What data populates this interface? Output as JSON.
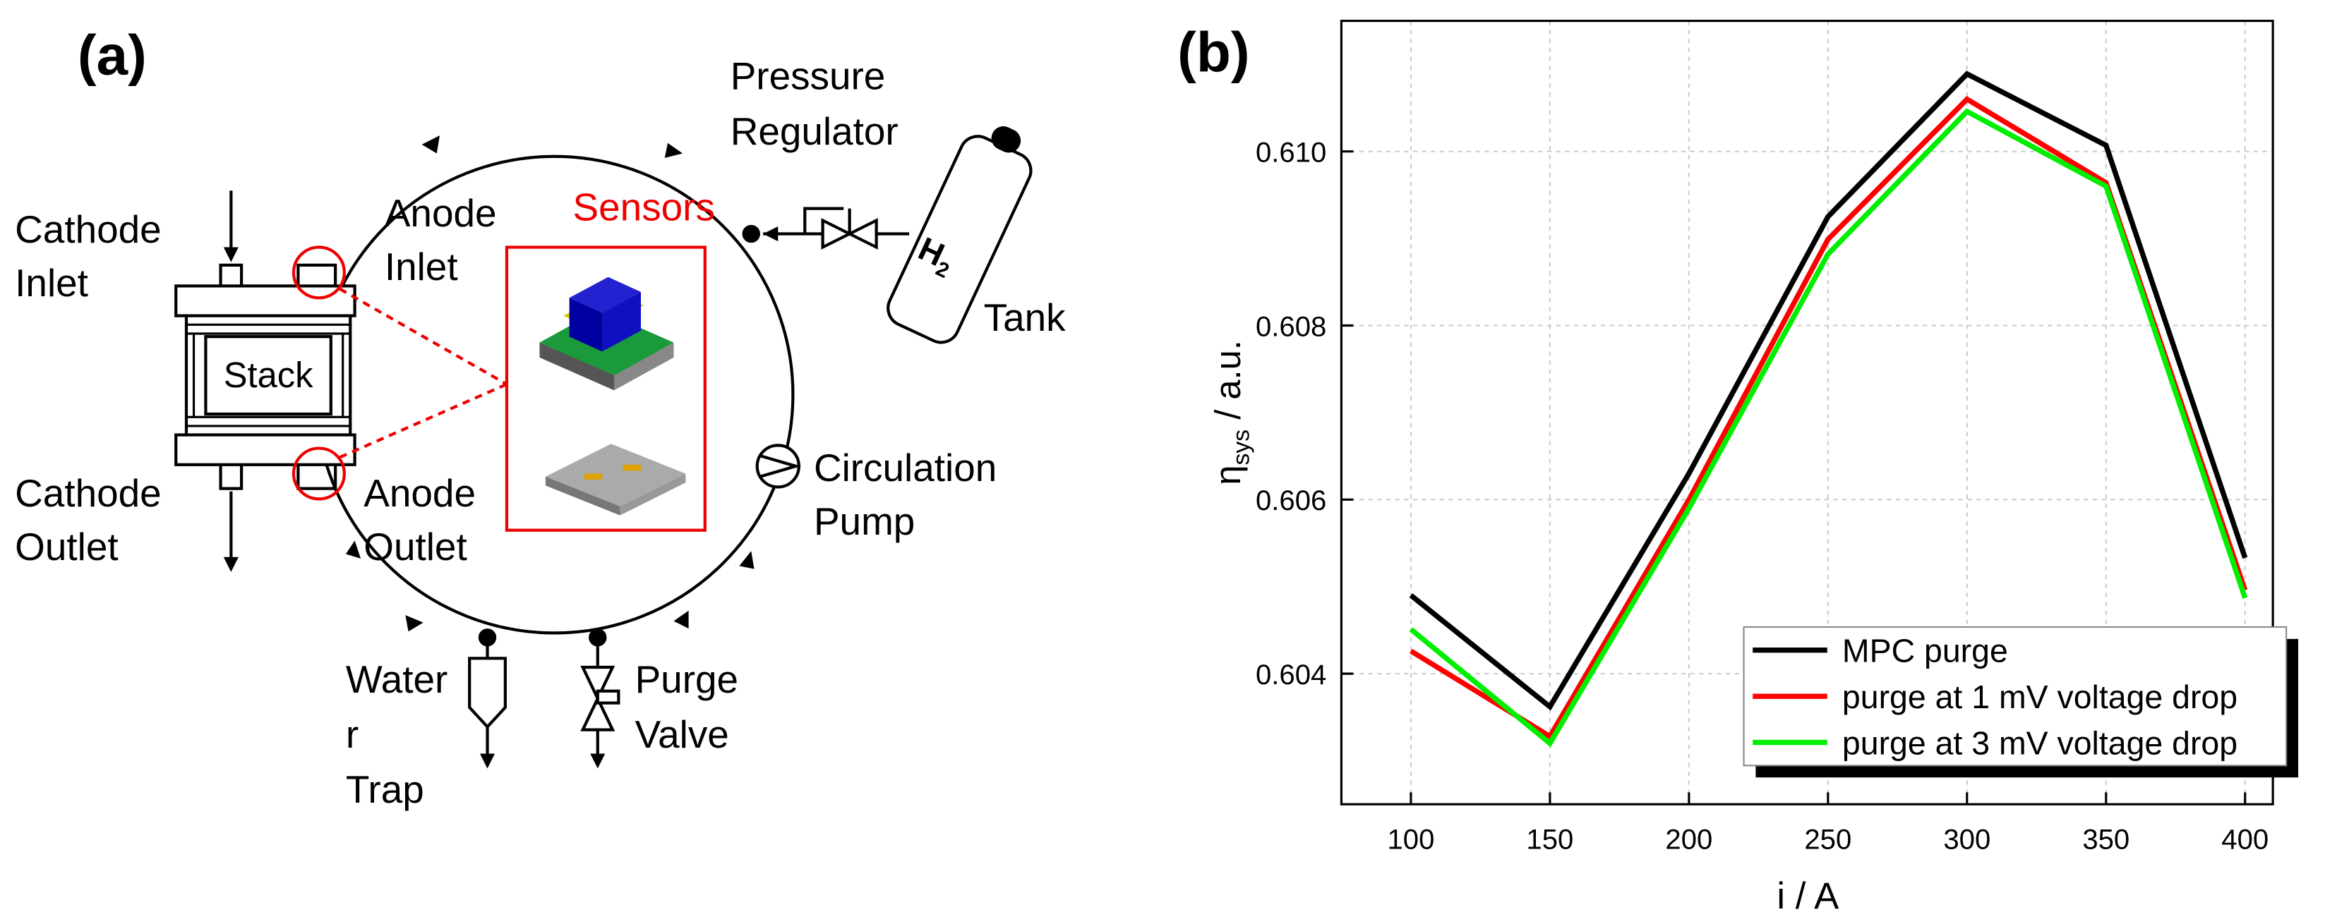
{
  "panel_a": {
    "label": "(a)",
    "pressure_regulator": [
      "Pressure",
      "Regulator"
    ],
    "cathode_inlet": [
      "Cathode",
      "Inlet"
    ],
    "anode_inlet": [
      "Anode",
      "Inlet"
    ],
    "sensors": "Sensors",
    "stack": "Stack",
    "tank_gas": "H",
    "tank_gas_sub": "2",
    "tank": "Tank",
    "cathode_outlet": [
      "Cathode",
      "Outlet"
    ],
    "anode_outlet": [
      "Anode",
      "Outlet"
    ],
    "circulation_pump": [
      "Circulation",
      "Pump"
    ],
    "water_trap": [
      "Water",
      "r",
      "Trap"
    ],
    "purge_valve": [
      "Purge",
      "Valve"
    ]
  },
  "chart_data": {
    "type": "line",
    "panel_label": "(b)",
    "xlabel": "i / A",
    "ylabel": {
      "symbol": "η",
      "subscript": "sys",
      "text": " / a.u."
    },
    "x": [
      100,
      150,
      200,
      250,
      300,
      350,
      400
    ],
    "xlim": [
      75,
      410
    ],
    "xticks": [
      100,
      150,
      200,
      250,
      300,
      350,
      400
    ],
    "ylim": [
      0.6025,
      0.6115
    ],
    "yticks": [
      {
        "value": 0.604,
        "label": "0.604"
      },
      {
        "value": 0.606,
        "label": "0.606"
      },
      {
        "value": 0.608,
        "label": "0.608"
      },
      {
        "value": 0.61,
        "label": "0.610"
      }
    ],
    "grid": true,
    "legend": "lower right",
    "series": [
      {
        "name": "MPC purge",
        "color": "#000000",
        "values": [
          0.6049,
          0.60362,
          0.6063,
          0.60925,
          0.61089,
          0.61007,
          0.60533
        ]
      },
      {
        "name": "purge at 1 mV voltage drop",
        "color": "#ff0000",
        "values": [
          0.60426,
          0.60328,
          0.606,
          0.60899,
          0.6106,
          0.60964,
          0.60496
        ]
      },
      {
        "name": "purge at 3 mV voltage drop",
        "color": "#00ee00",
        "values": [
          0.60451,
          0.6032,
          0.6059,
          0.60882,
          0.61046,
          0.6096,
          0.60487
        ]
      }
    ]
  }
}
